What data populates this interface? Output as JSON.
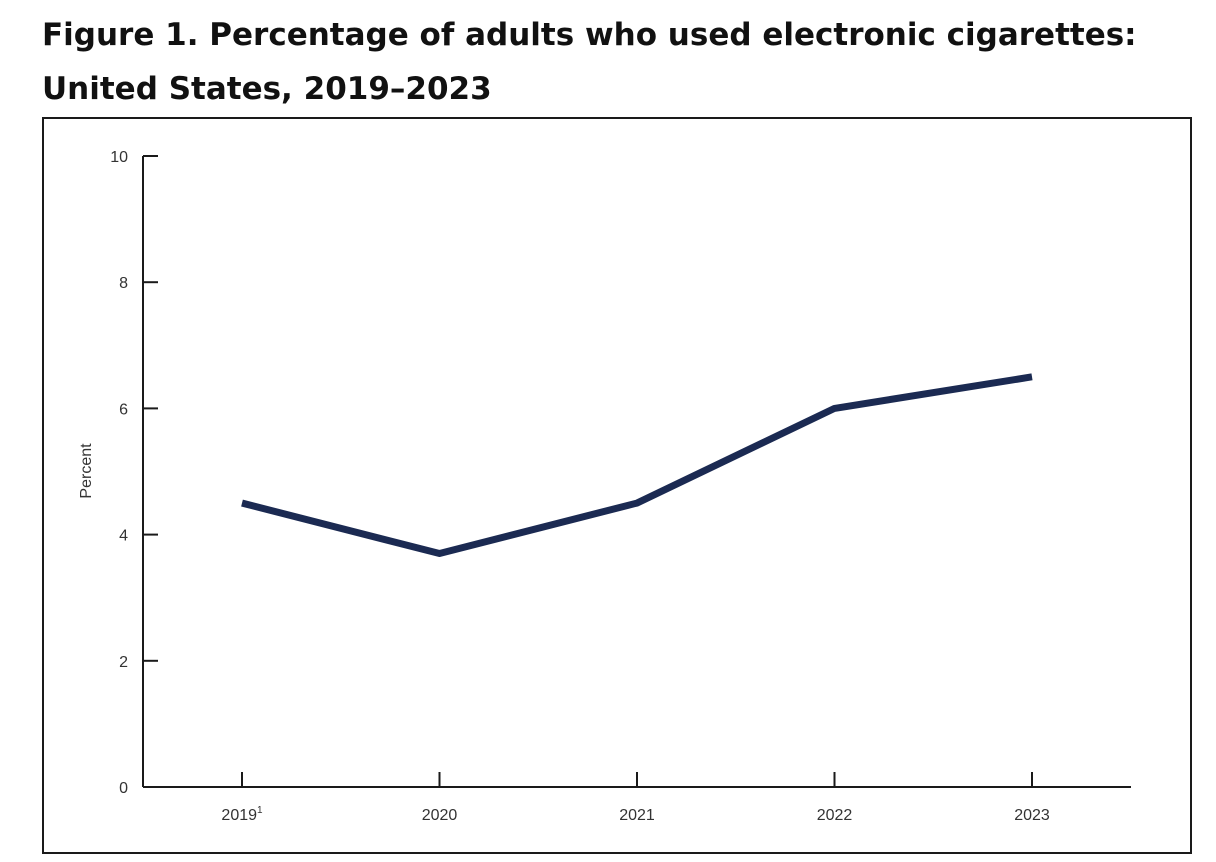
{
  "title": {
    "line1": "Figure 1. Percentage of adults who used electronic cigarettes:",
    "line2": "United States, 2019–2023"
  },
  "chart_data": {
    "type": "line",
    "title": "Figure 1. Percentage of adults who used electronic cigarettes: United States, 2019–2023",
    "xlabel": "",
    "ylabel": "Percent",
    "categories": [
      "2019",
      "2020",
      "2021",
      "2022",
      "2023"
    ],
    "category_footnotes": [
      "1",
      "",
      "",
      "",
      ""
    ],
    "series": [
      {
        "values": [
          4.5,
          3.7,
          4.5,
          6.0,
          6.5
        ],
        "color": "#1b2a52"
      }
    ],
    "ylim": [
      0,
      10
    ],
    "yticks": [
      0,
      2,
      4,
      6,
      8,
      10
    ],
    "grid": false,
    "legend": "none"
  }
}
